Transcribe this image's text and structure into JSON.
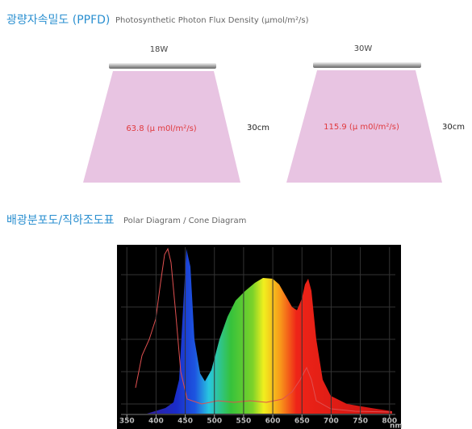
{
  "ppfd": {
    "title": "광량자속밀도 (PPFD)",
    "subtitle": "Photosynthetic  Photon  Flux  Density  (μmol/m²/s)",
    "fixtures": [
      {
        "wattage": "18W",
        "value": "63.8  (μ  m0l/m²/s)",
        "distance": "30cm"
      },
      {
        "wattage": "30W",
        "value": "115.9  (μ  m0l/m²/s)",
        "distance": "30cm"
      }
    ]
  },
  "distribution": {
    "title": "배광분포도/직하조도표",
    "subtitle": "Polar Diagram  / Cone Diagram"
  },
  "spectrum": {
    "xlim": [
      340,
      810
    ],
    "xticks": [
      350,
      400,
      450,
      500,
      550,
      600,
      650,
      700,
      750,
      800
    ],
    "unit": "nm"
  }
}
